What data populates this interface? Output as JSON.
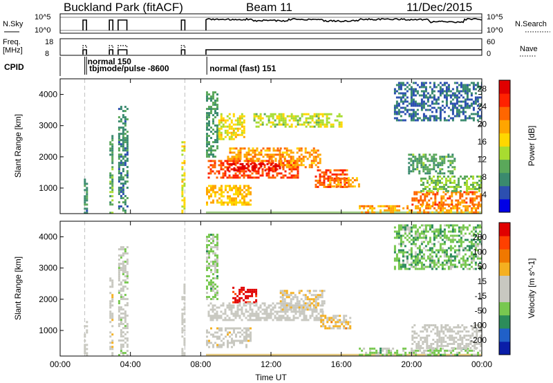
{
  "header": {
    "station": "Buckland Park (fitACF)",
    "beam": "Beam 11",
    "date": "11/Dec/2015"
  },
  "param_panels": {
    "nsky_label": "N.Sky",
    "nsky_ticks": [
      "10^5",
      "10^0"
    ],
    "nsearch_label": "N.Search",
    "nsearch_ticks": [
      "10^5",
      "10^0"
    ],
    "freq_label": "Freq.",
    "freq_unit": "[MHz]",
    "freq_ticks": [
      "18",
      "8"
    ],
    "nave_label": "Nave",
    "nave_ticks": [
      "60",
      "0"
    ],
    "cpid_label": "CPID",
    "cpid_entries": [
      {
        "text": "normal 150",
        "start_hour": 1.4
      },
      {
        "text": "tbjmode/pulse -8600",
        "start_hour": 1.5
      },
      {
        "text": "normal (fast) 151",
        "start_hour": 8.35
      }
    ]
  },
  "colors": {
    "power_scale": [
      "#0000e6",
      "#2c4fb0",
      "#3a8a6e",
      "#5aa85a",
      "#a8dc30",
      "#ffd700",
      "#ffa500",
      "#ff6600",
      "#ff2200",
      "#e00000"
    ],
    "velocity_scale": [
      "#0a1ea8",
      "#2060c8",
      "#2c8c5a",
      "#78c850",
      "#c8c8c0",
      "#c8c8c0",
      "#f5b020",
      "#f07800",
      "#ff4000",
      "#e00000"
    ]
  },
  "chart_data": [
    {
      "type": "heatmap",
      "name": "power",
      "xlabel": "Time UT",
      "ylabel": "Slant Range [km]",
      "colorbar_label": "Power [dB]",
      "x_ticks": [
        "00:00",
        "04:00",
        "08:00",
        "12:00",
        "16:00",
        "20:00",
        "00:00"
      ],
      "xlim_hours": [
        0,
        24
      ],
      "y_ticks": [
        1000,
        2000,
        3000,
        4000
      ],
      "ylim_km": [
        180,
        4500
      ],
      "colorbar_ticks": [
        4,
        8,
        12,
        16,
        20,
        24,
        28
      ],
      "clim": [
        0,
        30
      ],
      "regions": [
        {
          "t": [
            1.35,
            1.5
          ],
          "r": [
            180,
            1300
          ],
          "v": 8
        },
        {
          "t": [
            2.8,
            3.0
          ],
          "r": [
            200,
            2700
          ],
          "v": 10
        },
        {
          "t": [
            3.3,
            3.8
          ],
          "r": [
            200,
            3700
          ],
          "v": 8
        },
        {
          "t": [
            6.9,
            7.1
          ],
          "r": [
            200,
            2500
          ],
          "v": 16
        },
        {
          "t": [
            8.3,
            9.0
          ],
          "r": [
            2000,
            4100
          ],
          "v": 9
        },
        {
          "t": [
            8.3,
            10.8
          ],
          "r": [
            500,
            1100
          ],
          "v": 18
        },
        {
          "t": [
            9.0,
            10.5
          ],
          "r": [
            2600,
            3400
          ],
          "v": 16
        },
        {
          "t": [
            9.5,
            12.5
          ],
          "r": [
            1900,
            2300
          ],
          "v": 20
        },
        {
          "t": [
            8.4,
            13.5
          ],
          "r": [
            1350,
            1900
          ],
          "v": 24
        },
        {
          "t": [
            9.5,
            12.5
          ],
          "r": [
            1550,
            1800
          ],
          "v": 29
        },
        {
          "t": [
            12.5,
            14.8
          ],
          "r": [
            1700,
            2300
          ],
          "v": 20
        },
        {
          "t": [
            14.5,
            16.3
          ],
          "r": [
            1050,
            1600
          ],
          "v": 23
        },
        {
          "t": [
            15.3,
            17.0
          ],
          "r": [
            1050,
            1350
          ],
          "v": 20
        },
        {
          "t": [
            11.0,
            16.0
          ],
          "r": [
            3000,
            3400
          ],
          "v": 14
        },
        {
          "t": [
            17.0,
            24.0
          ],
          "r": [
            180,
            450
          ],
          "v": 20
        },
        {
          "t": [
            20.0,
            24.0
          ],
          "r": [
            450,
            900
          ],
          "v": 22
        },
        {
          "t": [
            20.5,
            24.0
          ],
          "r": [
            900,
            1400
          ],
          "v": 12
        },
        {
          "t": [
            19.8,
            22.5
          ],
          "r": [
            1500,
            2100
          ],
          "v": 10
        },
        {
          "t": [
            19.0,
            24.0
          ],
          "r": [
            3200,
            4400
          ],
          "v": 6
        }
      ]
    },
    {
      "type": "heatmap",
      "name": "velocity",
      "xlabel": "Time UT",
      "ylabel": "Slant Range [km]",
      "colorbar_label": "Velocity [m s^-1]",
      "x_ticks": [
        "00:00",
        "04:00",
        "08:00",
        "12:00",
        "16:00",
        "20:00",
        "00:00"
      ],
      "xlim_hours": [
        0,
        24
      ],
      "y_ticks": [
        1000,
        2000,
        3000,
        4000
      ],
      "ylim_km": [
        180,
        4500
      ],
      "colorbar_ticks": [
        "200",
        "100",
        "50",
        "15",
        "-15",
        "-50",
        "-100",
        "-200"
      ],
      "clim": [
        -250,
        250
      ],
      "regions": [
        {
          "t": [
            1.35,
            1.5
          ],
          "r": [
            180,
            1300
          ],
          "v": 0
        },
        {
          "t": [
            2.8,
            3.0
          ],
          "r": [
            200,
            2700
          ],
          "v": 30
        },
        {
          "t": [
            3.3,
            3.8
          ],
          "r": [
            200,
            3700
          ],
          "v": -20
        },
        {
          "t": [
            6.9,
            7.1
          ],
          "r": [
            200,
            2500
          ],
          "v": 0
        },
        {
          "t": [
            8.3,
            9.0
          ],
          "r": [
            2000,
            4100
          ],
          "v": -60
        },
        {
          "t": [
            8.3,
            10.8
          ],
          "r": [
            500,
            1100
          ],
          "v": 10
        },
        {
          "t": [
            9.8,
            11.2
          ],
          "r": [
            1900,
            2400
          ],
          "v": 230
        },
        {
          "t": [
            8.4,
            15.0
          ],
          "r": [
            1350,
            1900
          ],
          "v": 0
        },
        {
          "t": [
            12.5,
            15.0
          ],
          "r": [
            1700,
            2300
          ],
          "v": 40
        },
        {
          "t": [
            14.8,
            16.5
          ],
          "r": [
            1050,
            1500
          ],
          "v": 60
        },
        {
          "t": [
            17.0,
            24.0
          ],
          "r": [
            180,
            450
          ],
          "v": -60
        },
        {
          "t": [
            20.0,
            24.0
          ],
          "r": [
            450,
            1200
          ],
          "v": 0
        },
        {
          "t": [
            19.0,
            24.0
          ],
          "r": [
            3000,
            4400
          ],
          "v": -80
        }
      ]
    }
  ]
}
